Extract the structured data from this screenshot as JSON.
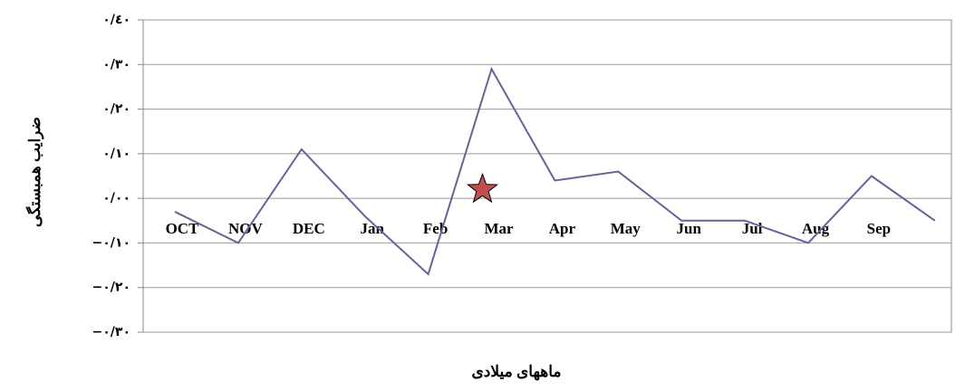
{
  "chart_data": {
    "type": "line",
    "y_label": "ضرایب همبستگی",
    "x_label": "ماههای میلادی",
    "categories": [
      "OCT",
      "NOV",
      "DEC",
      "Jan",
      "Feb",
      "Mar",
      "Apr",
      "May",
      "Jun",
      "Jul",
      "Aug",
      "Sep",
      null
    ],
    "series": [
      {
        "color": "#646496",
        "values": [
          -0.03,
          -0.1,
          0.11,
          -0.04,
          -0.17,
          0.29,
          0.04,
          0.06,
          -0.05,
          -0.05,
          -0.1,
          0.05,
          -0.05
        ]
      }
    ],
    "annotations": [
      {
        "x": "Mar",
        "y": 0.02,
        "marker": "star",
        "color": "#c0504d"
      }
    ],
    "ylim": [
      -0.3,
      0.4
    ],
    "yticks": [
      {
        "value": 0.4,
        "label": "٠/٤٠"
      },
      {
        "value": 0.3,
        "label": "٠/٣٠"
      },
      {
        "value": 0.2,
        "label": "٠/٢٠"
      },
      {
        "value": 0.1,
        "label": "٠/١٠"
      },
      {
        "value": 0,
        "label": "٠/٠٠"
      },
      {
        "value": -0.1,
        "label": "−٠/١٠"
      },
      {
        "value": -0.2,
        "label": "−٠/٢٠"
      },
      {
        "value": -0.3,
        "label": "−٠/٣٠"
      }
    ],
    "grid": true
  }
}
